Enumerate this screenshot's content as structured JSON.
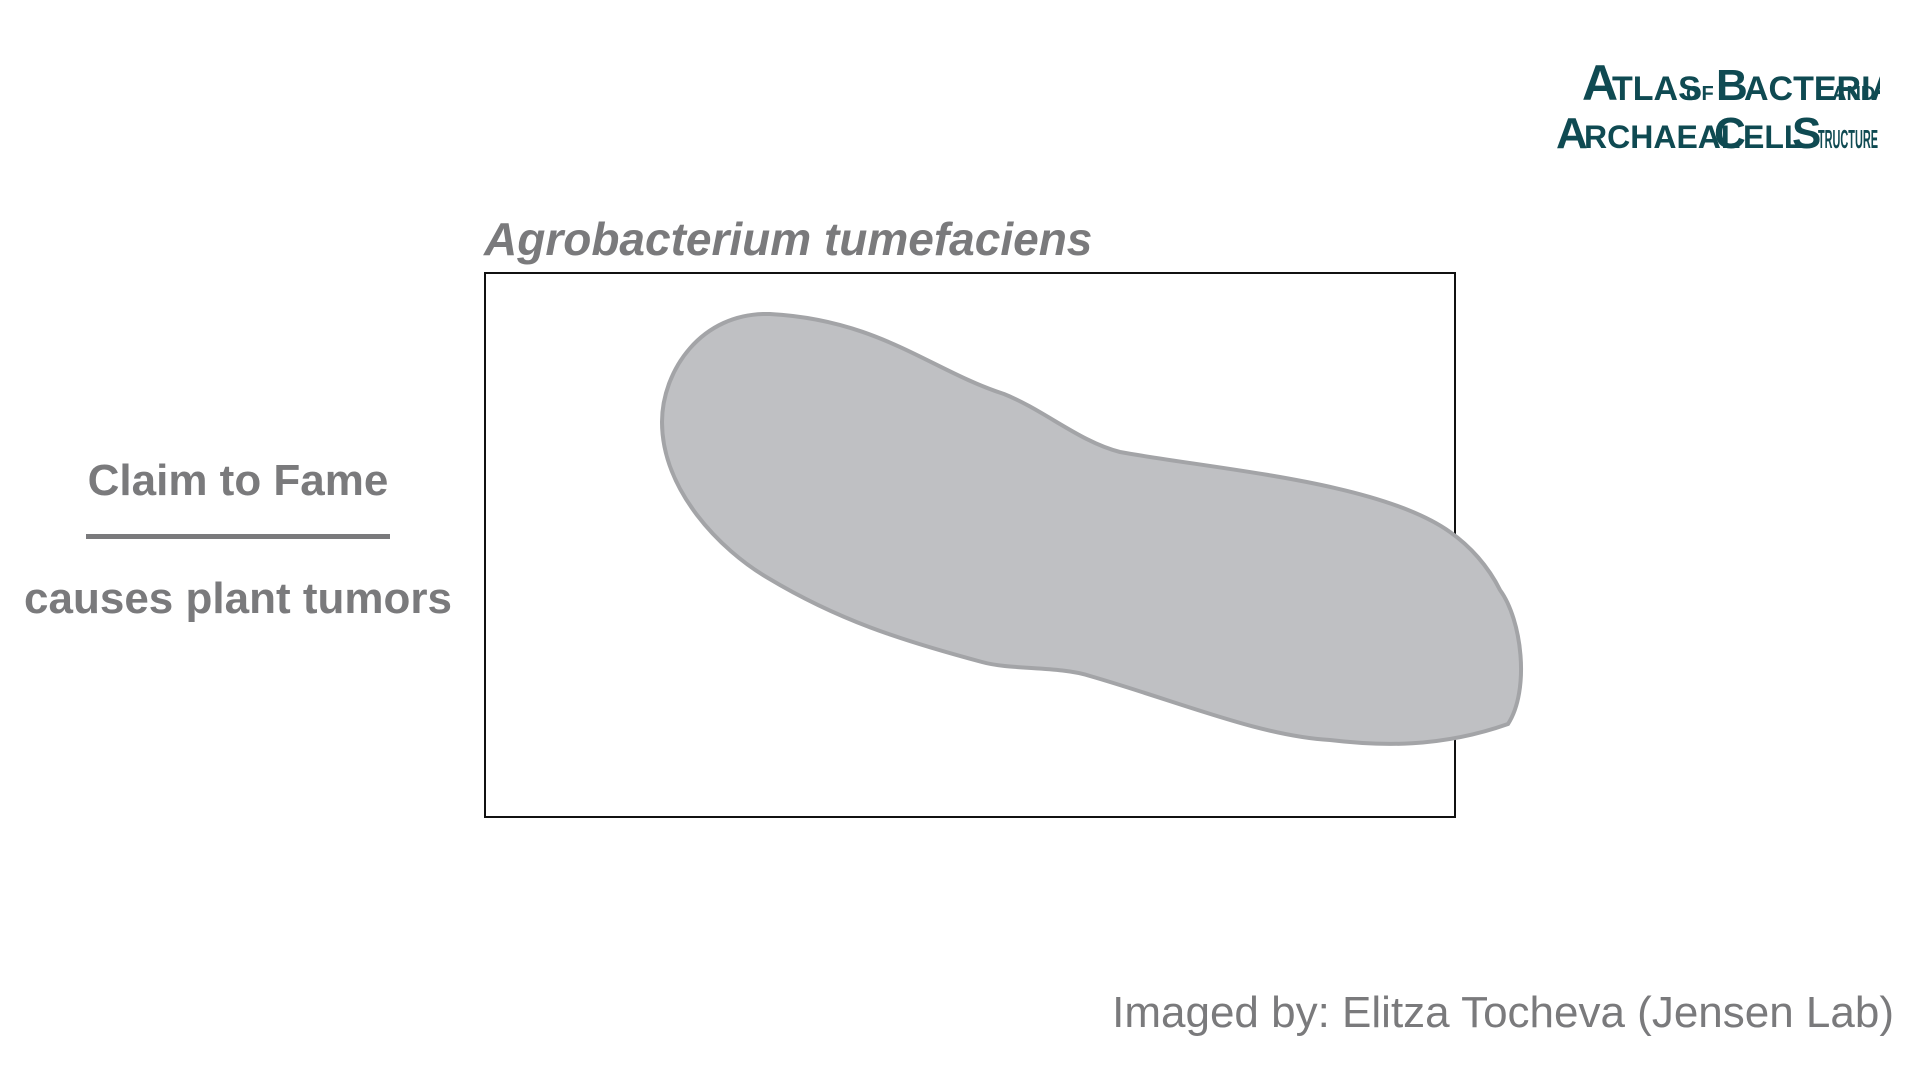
{
  "logo": {
    "line1_big_a": "A",
    "line1_rest": "TLAS",
    "line1_of": "OF",
    "line1_big_b": "B",
    "line1_bact": "ACTERIAL",
    "line1_and": "AND",
    "line2_big_a": "A",
    "line2_rch": "RCHAEAL",
    "line2_big_c": "C",
    "line2_ell": "ELL",
    "line2_big_s": "S",
    "line2_truct": "TRUCTURE",
    "color": "#0f4a52"
  },
  "organism": {
    "name": "Agrobacterium tumefaciens"
  },
  "claim": {
    "heading": "Claim to Fame",
    "text": "causes plant tumors"
  },
  "credit": {
    "text": "Imaged by: Elitza Tocheva (Jensen Lab)"
  },
  "colors": {
    "text_gray": "#7a7a7c",
    "cell_fill": "#bfc0c3",
    "cell_stroke": "#a3a4a7",
    "frame": "#111111"
  }
}
